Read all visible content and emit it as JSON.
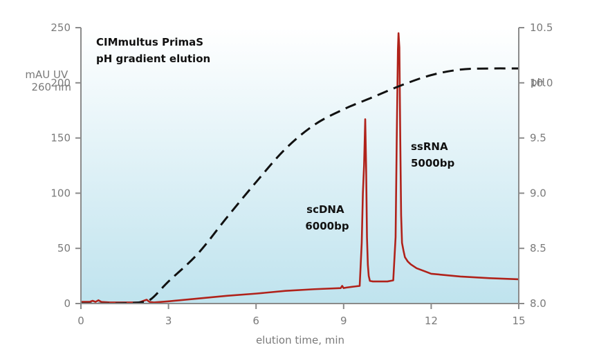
{
  "chart_data": {
    "type": "line",
    "title_lines": [
      "CIMmultus PrimaS",
      "pH gradient elution"
    ],
    "xlabel": "elution time, min",
    "ylabel_left_lines": [
      "mAU UV",
      "260 nm"
    ],
    "ylabel_right": "pH",
    "xlim": [
      0,
      15
    ],
    "ylim_left": [
      0,
      250
    ],
    "ylim_right": [
      8.0,
      10.5
    ],
    "x_ticks": [
      "0",
      "3",
      "6",
      "9",
      "12",
      "15"
    ],
    "y_left_ticks": [
      "0",
      "50",
      "100",
      "150",
      "200",
      "250"
    ],
    "y_right_ticks": [
      "8.0",
      "8.5",
      "9.0",
      "9.5",
      "10.0",
      "10.5"
    ],
    "grid": false,
    "background_gradient": [
      "#ffffff",
      "#bfe3ee"
    ],
    "annotations": [
      {
        "lines": [
          "scDNA",
          "6000bp"
        ],
        "x": 9.25,
        "y": 90
      },
      {
        "lines": [
          "ssRNA",
          "5000bp"
        ],
        "x": 11.4,
        "y": 132
      }
    ],
    "series": [
      {
        "name": "UV 260 nm",
        "axis": "left",
        "color": "#b0221a",
        "style": "solid",
        "x": [
          0,
          0.3,
          0.4,
          0.5,
          0.6,
          0.7,
          1.0,
          2.0,
          2.15,
          2.25,
          2.35,
          2.5,
          3.0,
          4.0,
          5.0,
          6.0,
          7.0,
          8.0,
          8.9,
          8.95,
          9.0,
          9.1,
          9.4,
          9.55,
          9.62,
          9.66,
          9.7,
          9.74,
          9.77,
          9.8,
          9.83,
          9.86,
          9.9,
          10.0,
          10.2,
          10.5,
          10.7,
          10.78,
          10.82,
          10.86,
          10.88,
          10.91,
          10.94,
          10.97,
          11.0,
          11.05,
          11.1,
          11.2,
          11.3,
          11.5,
          11.8,
          12.0,
          13.0,
          14.0,
          15.0
        ],
        "values": [
          1.5,
          1.5,
          2.5,
          1.5,
          3.0,
          1.5,
          1.0,
          1.0,
          2.5,
          3.5,
          1.5,
          1.0,
          2.0,
          4.5,
          7.0,
          9.0,
          11.5,
          13.0,
          14.0,
          16.0,
          14.0,
          14.5,
          15.5,
          16.0,
          55.0,
          100.0,
          125.0,
          167.0,
          125.0,
          60.0,
          35.0,
          25.0,
          20.5,
          20.0,
          20.0,
          20.0,
          21.0,
          60.0,
          150.0,
          230.0,
          245.0,
          232.0,
          150.0,
          80.0,
          55.0,
          48.0,
          42.0,
          38.0,
          35.5,
          32.0,
          29.0,
          27.0,
          24.5,
          23.0,
          22.0
        ]
      },
      {
        "name": "pH",
        "axis": "right",
        "color": "#111111",
        "style": "dashed",
        "x": [
          0,
          1.0,
          2.0,
          2.4,
          3.0,
          4.0,
          5.0,
          6.0,
          7.0,
          8.0,
          9.0,
          10.0,
          11.0,
          12.0,
          13.0,
          14.0,
          15.0
        ],
        "values": [
          8.0,
          8.0,
          8.01,
          8.04,
          8.2,
          8.45,
          8.78,
          9.1,
          9.4,
          9.62,
          9.76,
          9.87,
          9.98,
          10.07,
          10.12,
          10.13,
          10.13
        ]
      }
    ]
  }
}
